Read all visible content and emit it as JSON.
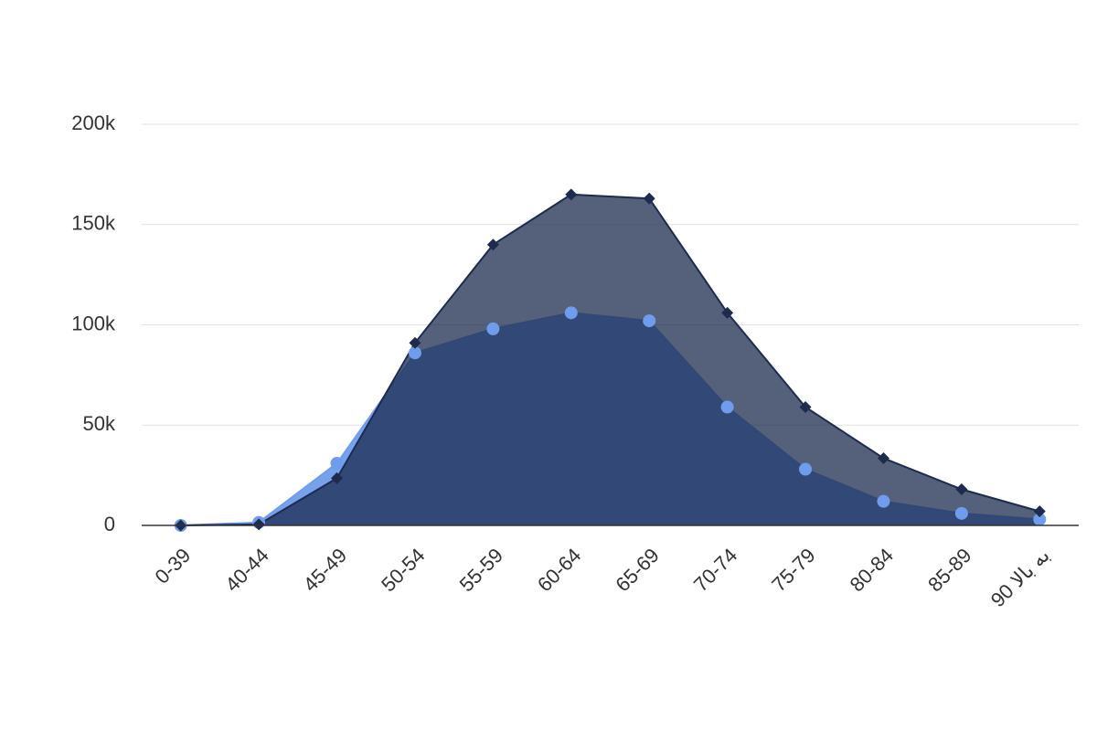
{
  "chart_data": {
    "type": "area",
    "categories": [
      "0-39",
      "40-44",
      "45-49",
      "50-54",
      "55-59",
      "60-64",
      "65-69",
      "70-74",
      "75-79",
      "80-84",
      "85-89",
      "90 به بالا"
    ],
    "series": [
      {
        "color": "#6f9cec",
        "marker": "circle",
        "values": [
          0,
          1500,
          31000,
          86000,
          98000,
          106000,
          102000,
          59000,
          28000,
          12000,
          6000,
          3000
        ]
      },
      {
        "color": "#1c2b4e",
        "marker": "diamond",
        "values": [
          0,
          500,
          23500,
          91000,
          140000,
          165000,
          163000,
          106000,
          59000,
          33500,
          18000,
          7000
        ]
      }
    ],
    "ylim": [
      0,
      200000
    ],
    "yticks": [
      0,
      {
        "value": 50000,
        "label": "50k"
      },
      {
        "value": 100000,
        "label": "100k"
      },
      {
        "value": 150000,
        "label": "150k"
      },
      {
        "value": 200000,
        "label": "200k"
      }
    ],
    "grid": true
  }
}
